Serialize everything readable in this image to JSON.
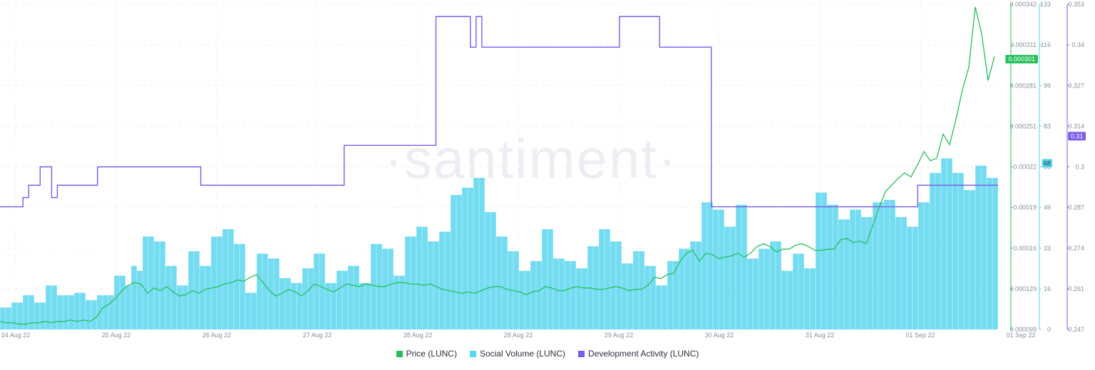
{
  "watermark": "·santiment·",
  "chart_data": {
    "type": "bar",
    "x_labels": [
      "24 Aug 22",
      "25 Aug 22",
      "26 Aug 22",
      "27 Aug 22",
      "28 Aug 22",
      "28 Aug 22",
      "29 Aug 22",
      "30 Aug 22",
      "31 Aug 22",
      "01 Sep 22",
      "01 Sep 22"
    ],
    "grid": true,
    "axes": {
      "price": {
        "ticks": [
          "0.000342",
          "0.000311",
          "0.000281",
          "0.000251",
          "0.00022",
          "0.00019",
          "0.00016",
          "0.000129",
          "0.000099"
        ],
        "ylim": [
          9.9e-05,
          0.000342
        ],
        "badge": "0.000301",
        "color": "#26c05a"
      },
      "social": {
        "ticks": [
          "133",
          "116",
          "99",
          "83",
          "66",
          "49",
          "33",
          "16",
          "0"
        ],
        "ylim": [
          0,
          133
        ],
        "badge": "68",
        "color": "#5ad6ee"
      },
      "dev": {
        "ticks": [
          "0.353",
          "0.34",
          "0.327",
          "0.314",
          "0.3",
          "0.287",
          "0.274",
          "0.261",
          "0.247"
        ],
        "ylim": [
          0.247,
          0.353
        ],
        "badge": "0.31",
        "color": "#7b5cf0"
      }
    },
    "series": [
      {
        "name": "Price (LUNC)",
        "type": "line",
        "axis": "price",
        "color": "#26c05a",
        "values": [
          0.000105,
          0.000104,
          0.000104,
          0.000103,
          0.000103,
          0.000104,
          0.000104,
          0.000105,
          0.000104,
          0.000105,
          0.000105,
          0.000106,
          0.000105,
          0.000106,
          0.000105,
          0.000108,
          0.000115,
          0.000118,
          0.000122,
          0.000128,
          0.000132,
          0.000134,
          0.000133,
          0.000126,
          0.00013,
          0.000128,
          0.000131,
          0.000127,
          0.000124,
          0.000125,
          0.000128,
          0.000126,
          0.000129,
          0.00013,
          0.000131,
          0.000133,
          0.000134,
          0.000136,
          0.000135,
          0.000138,
          0.00014,
          0.000134,
          0.000128,
          0.000124,
          0.000126,
          0.000129,
          0.000127,
          0.000124,
          0.000128,
          0.000133,
          0.000131,
          0.000129,
          0.000127,
          0.00013,
          0.000133,
          0.000132,
          0.000131,
          0.000133,
          0.000132,
          0.000131,
          0.000131,
          0.000133,
          0.000134,
          0.000134,
          0.000133,
          0.000133,
          0.000132,
          0.000133,
          0.000131,
          0.000129,
          0.000128,
          0.000127,
          0.000126,
          0.000127,
          0.000126,
          0.000128,
          0.00013,
          0.000131,
          0.000131,
          0.000129,
          0.000128,
          0.000127,
          0.000125,
          0.000127,
          0.000128,
          0.000131,
          0.00013,
          0.000128,
          0.000128,
          0.00013,
          0.000131,
          0.00013,
          0.00013,
          0.000129,
          0.000129,
          0.00013,
          0.000131,
          0.00013,
          0.000128,
          0.000129,
          0.000129,
          0.000132,
          0.000138,
          0.000137,
          0.00014,
          0.000141,
          0.00015,
          0.000156,
          0.000158,
          0.00015,
          0.000156,
          0.000155,
          0.000152,
          0.000153,
          0.000154,
          0.000156,
          0.000153,
          0.000156,
          0.000161,
          0.000163,
          0.000161,
          0.000157,
          0.000159,
          0.000159,
          0.000162,
          0.000163,
          0.000161,
          0.000158,
          0.000158,
          0.000159,
          0.000159,
          0.000166,
          0.000167,
          0.000164,
          0.000165,
          0.000163,
          0.000176,
          0.00019,
          0.000202,
          0.000207,
          0.000212,
          0.000216,
          0.000213,
          0.000222,
          0.000232,
          0.000225,
          0.000227,
          0.000245,
          0.000237,
          0.000256,
          0.000278,
          0.000295,
          0.00034,
          0.00032,
          0.000285,
          0.000303
        ]
      },
      {
        "name": "Social Volume (LUNC)",
        "type": "bar",
        "axis": "social",
        "color": "#5ad6ee",
        "values": [
          9,
          9,
          11,
          11,
          14,
          14,
          11,
          11,
          18,
          18,
          14,
          14,
          14,
          15,
          15,
          12,
          12,
          14,
          14,
          14,
          22,
          22,
          18,
          26,
          24,
          38,
          38,
          36,
          36,
          26,
          26,
          18,
          18,
          32,
          32,
          26,
          26,
          38,
          38,
          41,
          41,
          35,
          35,
          15,
          15,
          31,
          31,
          29,
          29,
          21,
          21,
          19,
          19,
          25,
          25,
          31,
          31,
          19,
          19,
          24,
          24,
          26,
          26,
          19,
          19,
          35,
          35,
          33,
          33,
          22,
          22,
          38,
          38,
          42,
          42,
          36,
          36,
          40,
          40,
          55,
          55,
          58,
          58,
          62,
          62,
          48,
          48,
          38,
          38,
          32,
          32,
          24,
          24,
          28,
          28,
          41,
          41,
          29,
          29,
          28,
          28,
          25,
          25,
          34,
          34,
          41,
          41,
          36,
          36,
          27,
          27,
          32,
          32,
          26,
          26,
          18,
          18,
          28,
          28,
          33,
          33,
          36,
          36,
          52,
          52,
          49,
          49,
          42,
          42,
          51,
          51,
          29,
          29,
          33,
          33,
          36,
          36,
          24,
          24,
          31,
          31,
          25,
          25,
          56,
          56,
          51,
          51,
          45,
          45,
          49,
          49,
          46,
          46,
          52,
          52,
          53,
          53,
          46,
          46,
          42,
          42,
          52,
          52,
          64,
          64,
          70,
          70,
          64,
          64,
          57,
          57,
          67,
          67,
          62,
          62
        ]
      },
      {
        "name": "Development Activity (LUNC)",
        "type": "step",
        "axis": "dev",
        "color": "#7b5cf0",
        "values": [
          0.287,
          0.287,
          0.287,
          0.287,
          0.29,
          0.294,
          0.294,
          0.3,
          0.3,
          0.29,
          0.294,
          0.294,
          0.294,
          0.294,
          0.294,
          0.294,
          0.294,
          0.3,
          0.3,
          0.3,
          0.3,
          0.3,
          0.3,
          0.3,
          0.3,
          0.3,
          0.3,
          0.3,
          0.3,
          0.3,
          0.3,
          0.3,
          0.3,
          0.3,
          0.3,
          0.294,
          0.294,
          0.294,
          0.294,
          0.294,
          0.294,
          0.294,
          0.294,
          0.294,
          0.294,
          0.294,
          0.294,
          0.294,
          0.294,
          0.294,
          0.294,
          0.294,
          0.294,
          0.294,
          0.294,
          0.294,
          0.294,
          0.294,
          0.294,
          0.294,
          0.307,
          0.307,
          0.307,
          0.307,
          0.307,
          0.307,
          0.307,
          0.307,
          0.307,
          0.307,
          0.307,
          0.307,
          0.307,
          0.307,
          0.307,
          0.307,
          0.349,
          0.349,
          0.349,
          0.349,
          0.349,
          0.349,
          0.339,
          0.349,
          0.339,
          0.339,
          0.339,
          0.339,
          0.339,
          0.339,
          0.339,
          0.339,
          0.339,
          0.339,
          0.339,
          0.339,
          0.339,
          0.339,
          0.339,
          0.339,
          0.339,
          0.339,
          0.339,
          0.339,
          0.339,
          0.339,
          0.339,
          0.339,
          0.349,
          0.349,
          0.349,
          0.349,
          0.349,
          0.349,
          0.349,
          0.339,
          0.339,
          0.339,
          0.339,
          0.339,
          0.339,
          0.339,
          0.339,
          0.339,
          0.287,
          0.287,
          0.287,
          0.287,
          0.287,
          0.287,
          0.287,
          0.287,
          0.287,
          0.287,
          0.287,
          0.287,
          0.287,
          0.287,
          0.287,
          0.287,
          0.287,
          0.287,
          0.287,
          0.287,
          0.287,
          0.287,
          0.287,
          0.287,
          0.287,
          0.287,
          0.287,
          0.287,
          0.287,
          0.287,
          0.287,
          0.287,
          0.287,
          0.287,
          0.287,
          0.287,
          0.294,
          0.294,
          0.294,
          0.294,
          0.294,
          0.294,
          0.294,
          0.294,
          0.294,
          0.294,
          0.294,
          0.294,
          0.294,
          0.294
        ]
      }
    ]
  }
}
